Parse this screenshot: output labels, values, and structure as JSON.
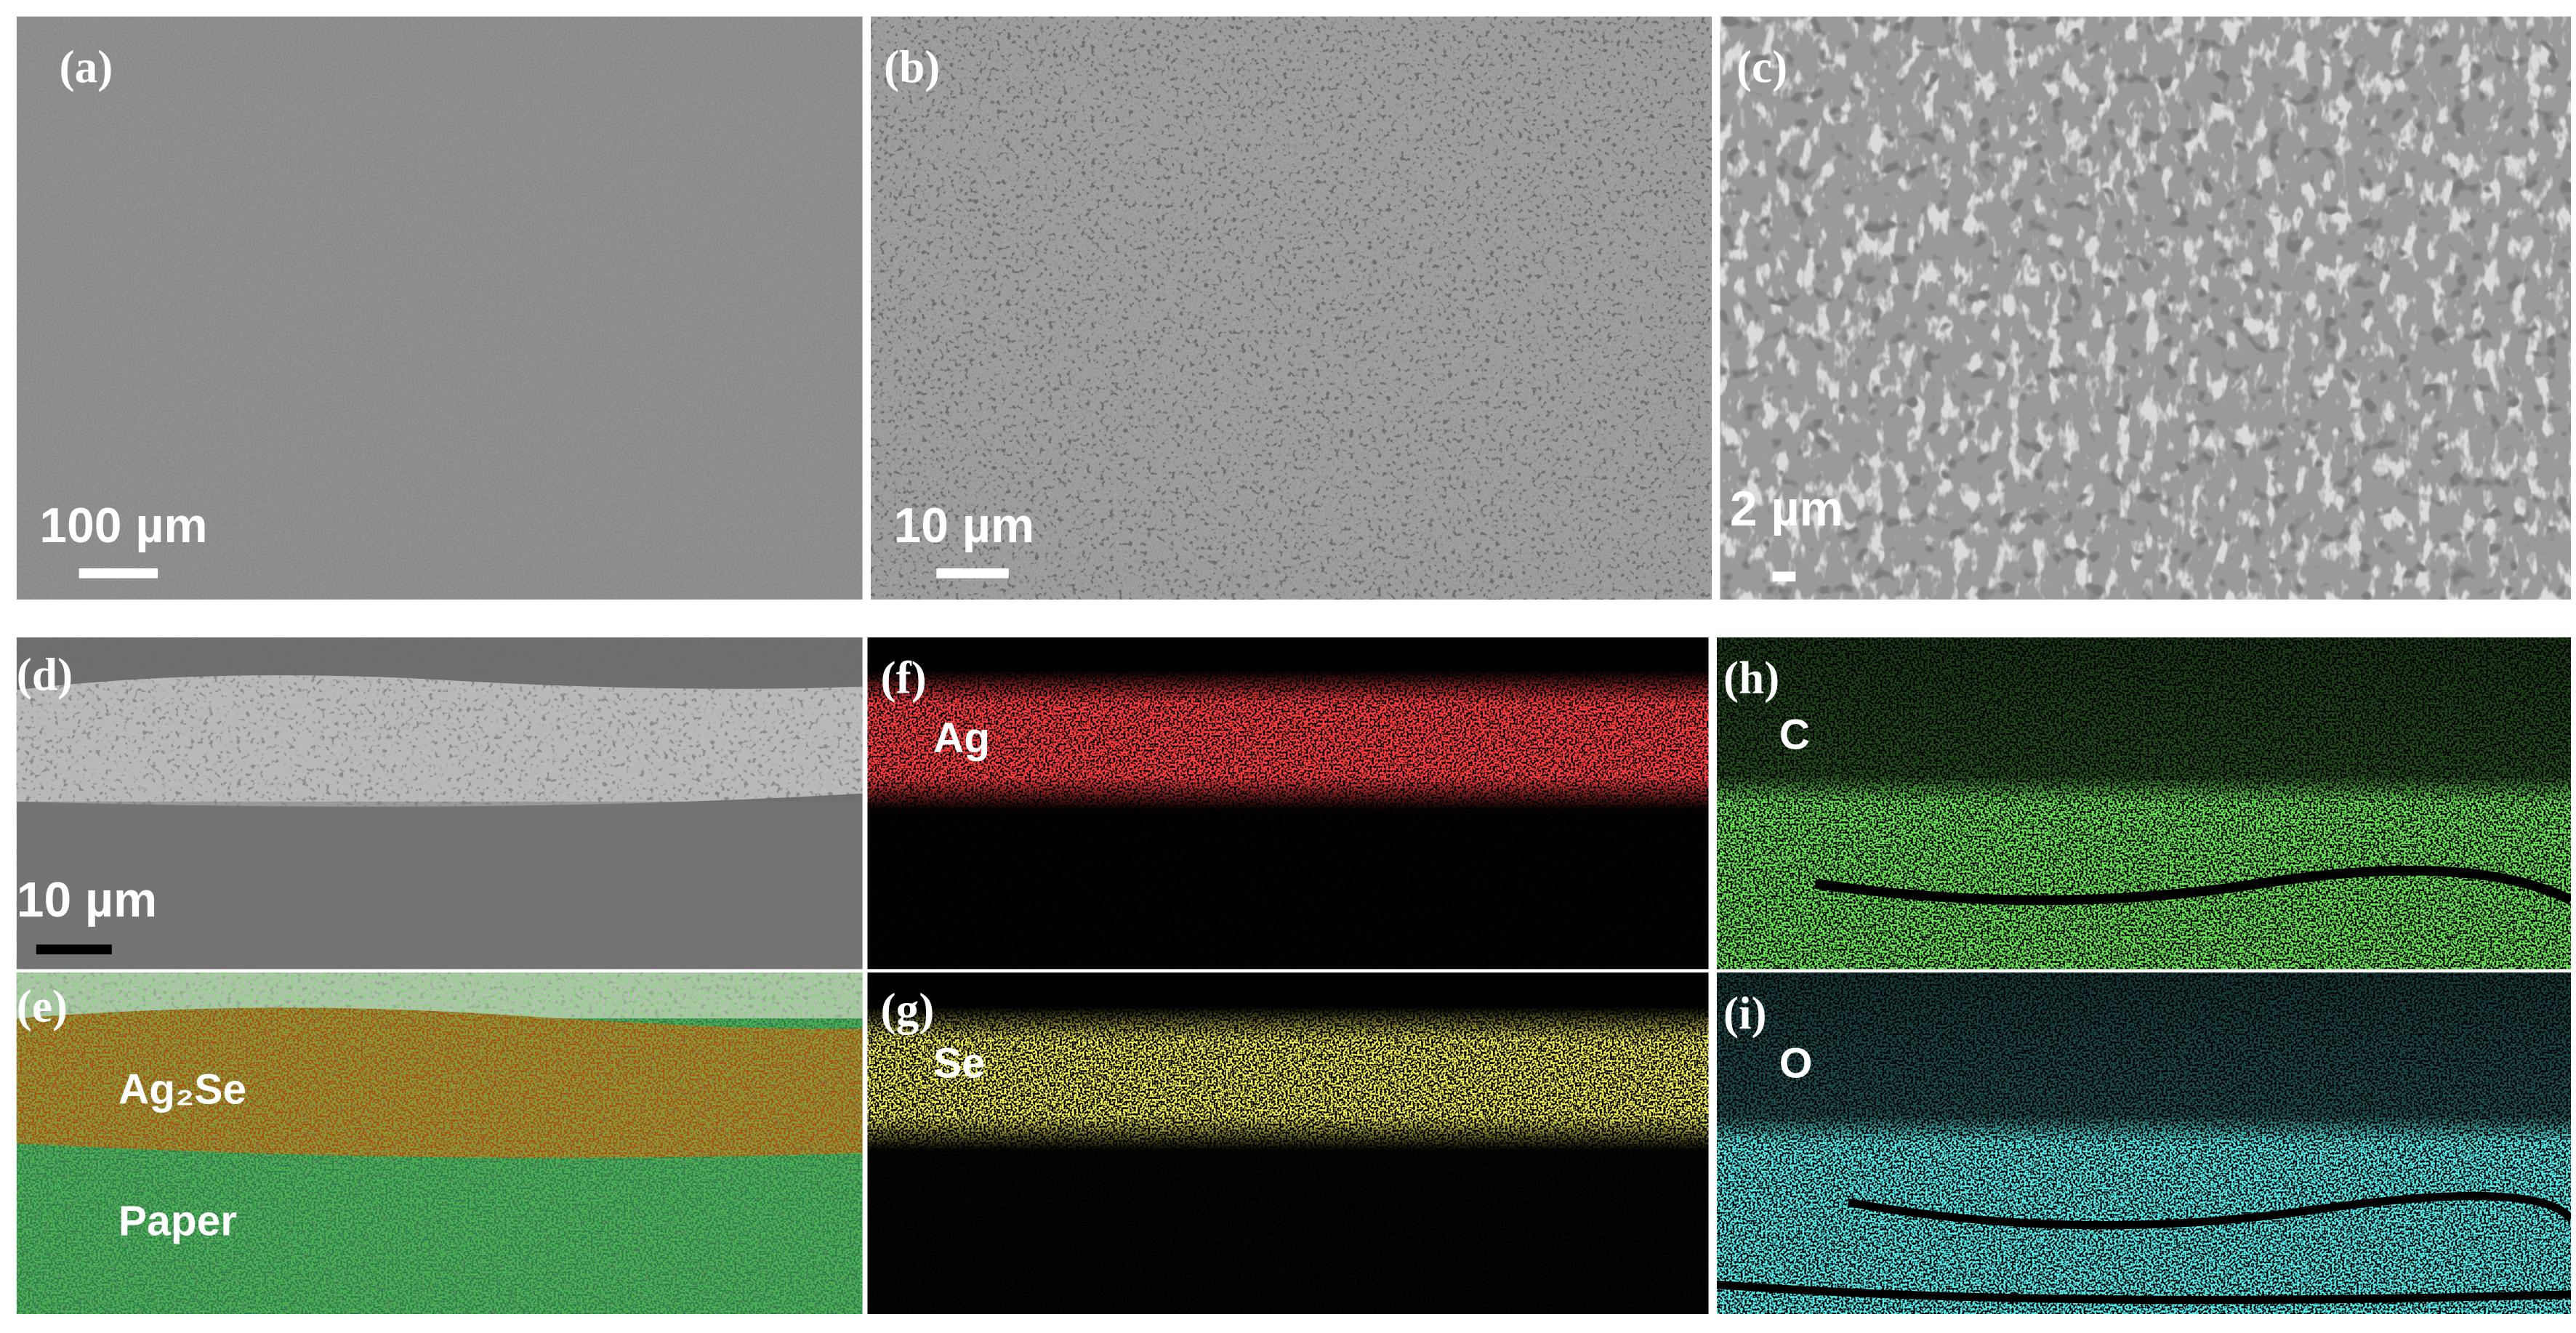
{
  "panels": [
    {
      "label": "(a)",
      "scale_bar": "100 µm"
    },
    {
      "label": "(b)",
      "scale_bar": "10 µm"
    },
    {
      "label": "(c)",
      "scale_bar": "2 µm"
    },
    {
      "label": "(d)",
      "scale_bar": "10 µm"
    },
    {
      "label": "(e)",
      "layers": [
        "Ag₂Se",
        "Paper"
      ]
    },
    {
      "label": "(f)",
      "element": "Ag"
    },
    {
      "label": "(g)",
      "element": "Se"
    },
    {
      "label": "(h)",
      "element": "C"
    },
    {
      "label": "(i)",
      "element": "O"
    }
  ]
}
